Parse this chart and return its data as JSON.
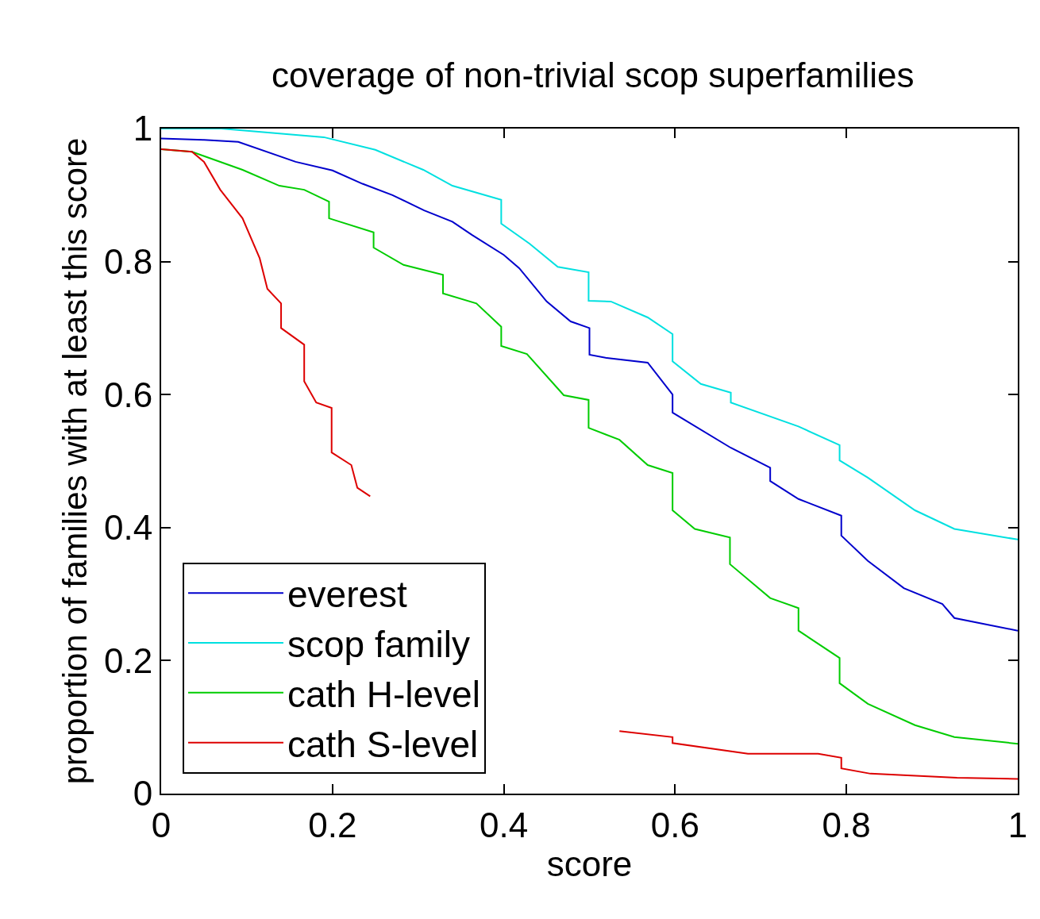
{
  "chart_data": {
    "type": "line",
    "title": "coverage of non-trivial scop superfamilies",
    "xlabel": "score",
    "ylabel": "proportion of families with at least this score",
    "xlim": [
      0,
      1
    ],
    "ylim": [
      0,
      1
    ],
    "xticks": [
      0,
      0.2,
      0.4,
      0.6,
      0.8,
      1
    ],
    "yticks": [
      0,
      0.2,
      0.4,
      0.6,
      0.8,
      1
    ],
    "grid": false,
    "legend": "bottom left",
    "marker": "none",
    "line_style": "solid",
    "series": [
      {
        "name": "everest",
        "color": "#0000cc",
        "x": [
          0,
          0.05,
          0.09,
          0.157,
          0.2,
          0.235,
          0.27,
          0.307,
          0.34,
          0.363,
          0.4,
          0.418,
          0.45,
          0.478,
          0.5,
          0.5,
          0.52,
          0.568,
          0.597,
          0.597,
          0.665,
          0.711,
          0.711,
          0.744,
          0.794,
          0.794,
          0.825,
          0.867,
          0.912,
          0.926,
          1
        ],
        "values": [
          0.985,
          0.983,
          0.98,
          0.95,
          0.937,
          0.917,
          0.9,
          0.877,
          0.86,
          0.84,
          0.81,
          0.79,
          0.74,
          0.71,
          0.7,
          0.66,
          0.655,
          0.648,
          0.6,
          0.573,
          0.52,
          0.49,
          0.47,
          0.443,
          0.418,
          0.388,
          0.35,
          0.309,
          0.285,
          0.264,
          0.245
        ]
      },
      {
        "name": "scop family",
        "color": "#00e0e0",
        "x": [
          0,
          0.07,
          0.19,
          0.25,
          0.306,
          0.34,
          0.397,
          0.397,
          0.43,
          0.463,
          0.499,
          0.499,
          0.525,
          0.568,
          0.597,
          0.597,
          0.63,
          0.665,
          0.665,
          0.744,
          0.792,
          0.792,
          0.825,
          0.88,
          0.926,
          1
        ],
        "values": [
          1,
          1,
          0.987,
          0.968,
          0.938,
          0.914,
          0.893,
          0.857,
          0.827,
          0.792,
          0.784,
          0.741,
          0.74,
          0.716,
          0.691,
          0.65,
          0.616,
          0.603,
          0.588,
          0.552,
          0.524,
          0.501,
          0.475,
          0.426,
          0.398,
          0.382
        ]
      },
      {
        "name": "cath H-level",
        "color": "#00cc00",
        "x": [
          0,
          0.036,
          0.095,
          0.138,
          0.167,
          0.196,
          0.196,
          0.248,
          0.248,
          0.283,
          0.329,
          0.329,
          0.368,
          0.397,
          0.397,
          0.427,
          0.47,
          0.499,
          0.499,
          0.535,
          0.568,
          0.597,
          0.597,
          0.623,
          0.664,
          0.664,
          0.711,
          0.744,
          0.744,
          0.792,
          0.792,
          0.825,
          0.88,
          0.926,
          1
        ],
        "values": [
          0.969,
          0.965,
          0.938,
          0.914,
          0.908,
          0.89,
          0.865,
          0.844,
          0.821,
          0.795,
          0.78,
          0.752,
          0.737,
          0.702,
          0.673,
          0.661,
          0.599,
          0.592,
          0.55,
          0.532,
          0.494,
          0.482,
          0.426,
          0.398,
          0.385,
          0.345,
          0.294,
          0.279,
          0.245,
          0.204,
          0.166,
          0.135,
          0.103,
          0.085,
          0.075
        ]
      },
      {
        "name": "cath S-level",
        "color": "#dd0000",
        "x": [
          0,
          0.036,
          0.05,
          0.069,
          0.095,
          0.115,
          0.124,
          0.14,
          0.14,
          0.167,
          0.167,
          0.181,
          0.199,
          0.199,
          0.222,
          0.229,
          0.244,
          0.39,
          0.535,
          0.597,
          0.597,
          0.685,
          0.767,
          0.794,
          0.794,
          0.828,
          0.929,
          1
        ],
        "values": [
          0.969,
          0.965,
          0.95,
          0.908,
          0.865,
          0.805,
          0.759,
          0.737,
          0.7,
          0.675,
          0.62,
          0.588,
          0.58,
          0.513,
          0.494,
          0.46,
          0.447,
          null,
          0.094,
          0.085,
          0.076,
          0.06,
          0.06,
          0.054,
          0.038,
          0.03,
          0.024,
          0.022
        ]
      }
    ]
  }
}
